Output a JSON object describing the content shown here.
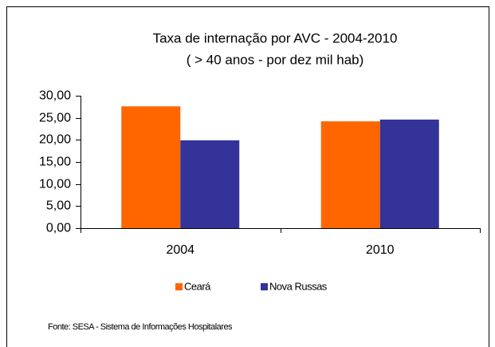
{
  "chart_data": {
    "type": "bar",
    "title": "Taxa de internação por AVC - 2004-2010",
    "subtitle": "( > 40 anos - por dez mil hab)",
    "categories": [
      "2004",
      "2010"
    ],
    "series": [
      {
        "name": "Ceará",
        "color": "#ff6600",
        "values": [
          27.6,
          24.2
        ]
      },
      {
        "name": "Nova Russas",
        "color": "#333399",
        "values": [
          19.9,
          24.6
        ]
      }
    ],
    "ylim": [
      0,
      30
    ],
    "yticks": [
      {
        "value": 0,
        "label": "0,00"
      },
      {
        "value": 5,
        "label": "5,00"
      },
      {
        "value": 10,
        "label": "10,00"
      },
      {
        "value": 15,
        "label": "15,00"
      },
      {
        "value": 20,
        "label": "20,00"
      },
      {
        "value": 25,
        "label": "25,00"
      },
      {
        "value": 30,
        "label": "30,00"
      }
    ],
    "legend": "bottom",
    "source": "Fonte: SESA - Sistema de Informações Hospitalares"
  }
}
